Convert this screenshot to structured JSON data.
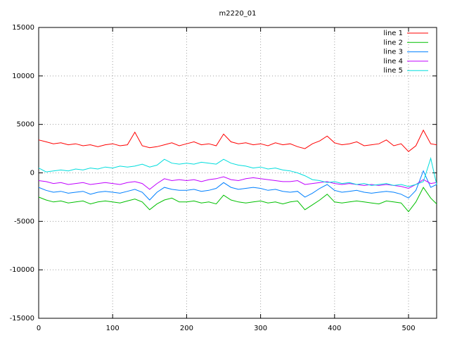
{
  "chart_data": {
    "type": "line",
    "title": "m2220_01",
    "x": [
      0,
      10,
      20,
      30,
      40,
      50,
      60,
      70,
      80,
      90,
      100,
      110,
      120,
      130,
      140,
      150,
      160,
      170,
      180,
      190,
      200,
      210,
      220,
      230,
      240,
      250,
      260,
      270,
      280,
      290,
      300,
      310,
      320,
      330,
      340,
      350,
      360,
      370,
      380,
      390,
      400,
      410,
      420,
      430,
      440,
      450,
      460,
      470,
      480,
      490,
      500,
      510,
      520,
      530,
      538
    ],
    "series": [
      {
        "name": "line 1",
        "color": "#ff0000",
        "values": [
          3400,
          3200,
          3000,
          3100,
          2900,
          3000,
          2800,
          2900,
          2700,
          2900,
          3000,
          2800,
          2900,
          4200,
          2800,
          2600,
          2700,
          2900,
          3100,
          2800,
          3000,
          3200,
          2900,
          3000,
          2800,
          4000,
          3200,
          3000,
          3100,
          2900,
          3000,
          2800,
          3100,
          2900,
          3000,
          2700,
          2500,
          3000,
          3300,
          3800,
          3100,
          2900,
          3000,
          3200,
          2800,
          2900,
          3000,
          3400,
          2800,
          3000,
          2200,
          2800,
          4400,
          3000,
          2900
        ]
      },
      {
        "name": "line 2",
        "color": "#00c000",
        "values": [
          -2500,
          -2800,
          -3000,
          -2900,
          -3100,
          -3000,
          -2900,
          -3200,
          -3000,
          -2900,
          -3000,
          -3100,
          -2900,
          -2700,
          -3000,
          -3800,
          -3200,
          -2800,
          -2600,
          -3000,
          -3000,
          -2900,
          -3100,
          -3000,
          -3200,
          -2300,
          -2800,
          -3000,
          -3100,
          -3000,
          -2900,
          -3100,
          -3000,
          -3200,
          -3000,
          -2900,
          -3800,
          -3300,
          -2800,
          -2200,
          -3000,
          -3100,
          -3000,
          -2900,
          -3000,
          -3100,
          -3200,
          -2900,
          -3000,
          -3100,
          -4000,
          -3000,
          -1500,
          -2600,
          -3200
        ]
      },
      {
        "name": "line 3",
        "color": "#0080ff",
        "values": [
          -1500,
          -1800,
          -2000,
          -1900,
          -2100,
          -2000,
          -1900,
          -2200,
          -2000,
          -1900,
          -2000,
          -2100,
          -1900,
          -1700,
          -2000,
          -2800,
          -2000,
          -1500,
          -1700,
          -1800,
          -1800,
          -1700,
          -1900,
          -1800,
          -1600,
          -1000,
          -1500,
          -1700,
          -1600,
          -1500,
          -1600,
          -1800,
          -1700,
          -1900,
          -2000,
          -1900,
          -2500,
          -2100,
          -1600,
          -1200,
          -1800,
          -2000,
          -1900,
          -1800,
          -2000,
          -2100,
          -2000,
          -1900,
          -2000,
          -2200,
          -2600,
          -1800,
          200,
          -1500,
          -1200
        ]
      },
      {
        "name": "line 4",
        "color": "#c000ff",
        "values": [
          -800,
          -900,
          -1100,
          -1000,
          -1200,
          -1100,
          -1000,
          -1200,
          -1100,
          -1000,
          -1100,
          -1200,
          -1000,
          -900,
          -1100,
          -1700,
          -1100,
          -600,
          -800,
          -700,
          -800,
          -700,
          -900,
          -700,
          -600,
          -400,
          -700,
          -800,
          -600,
          -500,
          -600,
          -700,
          -800,
          -900,
          -900,
          -800,
          -1200,
          -1100,
          -1000,
          -900,
          -1100,
          -1200,
          -1100,
          -1200,
          -1300,
          -1200,
          -1300,
          -1200,
          -1300,
          -1400,
          -1600,
          -1200,
          -700,
          -1100,
          -1000
        ]
      },
      {
        "name": "line 5",
        "color": "#00dddd",
        "values": [
          500,
          100,
          200,
          300,
          200,
          400,
          300,
          500,
          400,
          600,
          500,
          700,
          600,
          700,
          900,
          600,
          800,
          1400,
          1000,
          900,
          1000,
          900,
          1100,
          1000,
          900,
          1400,
          1000,
          800,
          700,
          500,
          600,
          400,
          500,
          300,
          200,
          0,
          -300,
          -700,
          -800,
          -1000,
          -900,
          -1100,
          -1000,
          -1200,
          -1100,
          -1300,
          -1200,
          -1100,
          -1300,
          -1200,
          -1400,
          -1200,
          -900,
          1500,
          -1200
        ]
      }
    ],
    "xlim": [
      0,
      538
    ],
    "xticks": [
      0,
      100,
      200,
      300,
      400,
      500
    ],
    "ylim": [
      -15000,
      15000
    ],
    "yticks": [
      -15000,
      -10000,
      -5000,
      0,
      5000,
      10000,
      15000
    ],
    "grid": true,
    "legend": "top-right"
  }
}
